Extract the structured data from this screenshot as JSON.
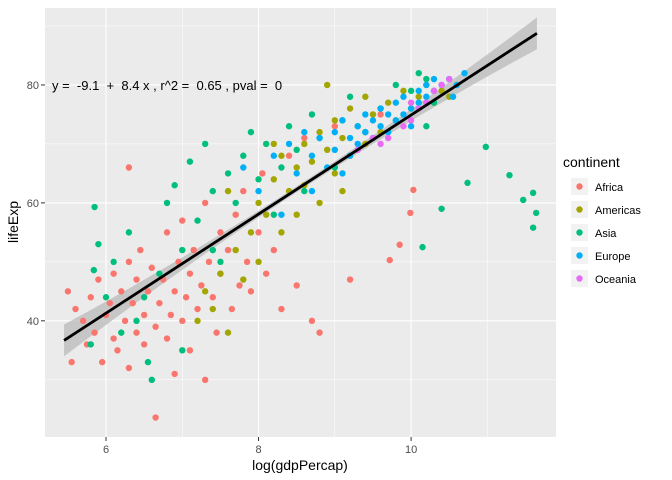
{
  "chart_data": {
    "type": "scatter",
    "xlabel": "log(gdpPercap)",
    "ylabel": "lifeExp",
    "xlim": [
      5.2,
      11.9
    ],
    "ylim": [
      20.3,
      93.05
    ],
    "x_ticks": [
      6,
      8,
      10
    ],
    "y_ticks": [
      40,
      60,
      80
    ],
    "grid": true,
    "annotation": "y =  -9.1  +  8.4 x , r^2 =  0.65 , pval =  0",
    "regression": {
      "intercept": -9.1,
      "slope": 8.4,
      "x_range": [
        5.45,
        11.65
      ],
      "color": "#000000",
      "band_color": "#bdbdbd"
    },
    "legend": {
      "title": "continent",
      "position": "right"
    },
    "series": [
      {
        "name": "Africa",
        "color": "#F8766D",
        "points": [
          [
            5.5,
            45
          ],
          [
            5.6,
            42
          ],
          [
            5.7,
            40
          ],
          [
            5.75,
            36
          ],
          [
            5.8,
            44
          ],
          [
            5.85,
            38
          ],
          [
            5.9,
            47
          ],
          [
            5.95,
            33
          ],
          [
            6.0,
            41
          ],
          [
            6.05,
            43
          ],
          [
            6.1,
            37
          ],
          [
            6.1,
            48
          ],
          [
            6.15,
            35
          ],
          [
            6.2,
            45
          ],
          [
            6.25,
            40
          ],
          [
            6.3,
            50
          ],
          [
            6.3,
            32
          ],
          [
            6.35,
            43
          ],
          [
            6.4,
            38
          ],
          [
            6.4,
            47
          ],
          [
            6.45,
            52
          ],
          [
            6.5,
            41
          ],
          [
            6.5,
            36
          ],
          [
            6.55,
            45
          ],
          [
            6.6,
            49
          ],
          [
            6.65,
            23.6
          ],
          [
            6.65,
            39
          ],
          [
            6.7,
            43
          ],
          [
            6.75,
            47
          ],
          [
            6.8,
            55
          ],
          [
            6.8,
            37
          ],
          [
            6.85,
            41
          ],
          [
            6.9,
            45
          ],
          [
            6.95,
            50
          ],
          [
            7.0,
            40
          ],
          [
            7.0,
            57
          ],
          [
            7.05,
            44
          ],
          [
            7.1,
            48
          ],
          [
            7.1,
            35
          ],
          [
            7.15,
            52
          ],
          [
            7.2,
            42
          ],
          [
            7.25,
            46
          ],
          [
            7.3,
            60
          ],
          [
            7.35,
            50
          ],
          [
            7.4,
            44
          ],
          [
            7.45,
            38
          ],
          [
            7.5,
            55
          ],
          [
            7.5,
            48
          ],
          [
            7.6,
            52
          ],
          [
            7.65,
            42
          ],
          [
            7.7,
            58
          ],
          [
            7.75,
            46
          ],
          [
            7.8,
            62
          ],
          [
            7.85,
            50
          ],
          [
            7.9,
            45
          ],
          [
            8.0,
            55
          ],
          [
            8.05,
            65
          ],
          [
            8.1,
            48
          ],
          [
            8.2,
            52
          ],
          [
            8.3,
            42
          ],
          [
            8.4,
            68
          ],
          [
            8.5,
            46
          ],
          [
            8.6,
            71
          ],
          [
            8.7,
            40
          ],
          [
            8.8,
            38
          ],
          [
            9.0,
            73
          ],
          [
            9.2,
            47
          ],
          [
            9.4,
            70
          ],
          [
            9.6,
            75
          ],
          [
            9.72,
            50.3
          ],
          [
            9.85,
            52.9
          ],
          [
            9.99,
            58.3
          ],
          [
            10.03,
            62.2
          ],
          [
            6.3,
            66
          ],
          [
            5.55,
            33
          ],
          [
            7.3,
            30
          ],
          [
            6.9,
            31
          ]
        ]
      },
      {
        "name": "Americas",
        "color": "#A3A500",
        "points": [
          [
            7.2,
            40
          ],
          [
            7.3,
            45
          ],
          [
            7.4,
            42
          ],
          [
            7.5,
            48
          ],
          [
            7.6,
            38
          ],
          [
            7.7,
            52
          ],
          [
            7.8,
            47
          ],
          [
            7.9,
            55
          ],
          [
            8.0,
            50
          ],
          [
            8.0,
            60
          ],
          [
            8.1,
            58
          ],
          [
            8.2,
            64
          ],
          [
            8.3,
            55
          ],
          [
            8.3,
            68
          ],
          [
            8.4,
            62
          ],
          [
            8.5,
            66
          ],
          [
            8.5,
            58
          ],
          [
            8.6,
            70
          ],
          [
            8.6,
            63
          ],
          [
            8.7,
            67
          ],
          [
            8.8,
            72
          ],
          [
            8.8,
            60
          ],
          [
            8.9,
            69
          ],
          [
            9.0,
            74
          ],
          [
            9.0,
            65
          ],
          [
            9.1,
            71
          ],
          [
            9.2,
            76
          ],
          [
            9.2,
            68
          ],
          [
            9.3,
            73
          ],
          [
            9.4,
            70
          ],
          [
            9.4,
            78
          ],
          [
            9.5,
            75
          ],
          [
            9.6,
            72
          ],
          [
            9.7,
            77
          ],
          [
            9.8,
            74
          ],
          [
            9.9,
            79
          ],
          [
            10.0,
            76
          ],
          [
            10.1,
            78
          ],
          [
            10.2,
            80
          ],
          [
            10.3,
            77
          ],
          [
            10.4,
            79
          ],
          [
            10.5,
            78
          ],
          [
            10.6,
            80
          ],
          [
            8.9,
            80
          ],
          [
            9.1,
            62
          ],
          [
            8.2,
            70
          ],
          [
            7.6,
            62
          ]
        ]
      },
      {
        "name": "Asia",
        "color": "#00BF7D",
        "points": [
          [
            5.8,
            36
          ],
          [
            5.84,
            48.6
          ],
          [
            5.85,
            59.3
          ],
          [
            5.9,
            53
          ],
          [
            6.0,
            44
          ],
          [
            6.2,
            38
          ],
          [
            6.3,
            55
          ],
          [
            6.4,
            40
          ],
          [
            6.5,
            44
          ],
          [
            6.6,
            30
          ],
          [
            6.7,
            48
          ],
          [
            6.8,
            60
          ],
          [
            6.9,
            63
          ],
          [
            7.0,
            52
          ],
          [
            7.1,
            67
          ],
          [
            7.2,
            57
          ],
          [
            7.3,
            70
          ],
          [
            7.4,
            62
          ],
          [
            7.5,
            50
          ],
          [
            7.6,
            65
          ],
          [
            7.7,
            60
          ],
          [
            7.8,
            68
          ],
          [
            7.9,
            72
          ],
          [
            8.0,
            64
          ],
          [
            8.1,
            70
          ],
          [
            8.2,
            58
          ],
          [
            8.3,
            66
          ],
          [
            8.4,
            73
          ],
          [
            8.5,
            69
          ],
          [
            8.6,
            62
          ],
          [
            8.7,
            75
          ],
          [
            8.8,
            71
          ],
          [
            9.0,
            66
          ],
          [
            9.1,
            74
          ],
          [
            9.2,
            78
          ],
          [
            9.4,
            72
          ],
          [
            9.6,
            76
          ],
          [
            9.8,
            80
          ],
          [
            10.0,
            79
          ],
          [
            10.1,
            82
          ],
          [
            10.2,
            81
          ],
          [
            10.3,
            77
          ],
          [
            10.4,
            59
          ],
          [
            10.15,
            52.5
          ],
          [
            10.74,
            63.4
          ],
          [
            10.98,
            69.5
          ],
          [
            11.29,
            64.7
          ],
          [
            11.47,
            60.5
          ],
          [
            11.6,
            61.7
          ],
          [
            11.64,
            58.3
          ],
          [
            11.6,
            55.8
          ],
          [
            10.2,
            73
          ],
          [
            6.1,
            50
          ],
          [
            7.0,
            35
          ],
          [
            6.55,
            33
          ],
          [
            7.4,
            52
          ]
        ]
      },
      {
        "name": "Europe",
        "color": "#00B0F6",
        "points": [
          [
            7.8,
            66
          ],
          [
            8.0,
            62
          ],
          [
            8.2,
            68
          ],
          [
            8.4,
            70
          ],
          [
            8.5,
            65
          ],
          [
            8.6,
            72
          ],
          [
            8.7,
            68
          ],
          [
            8.8,
            71
          ],
          [
            8.9,
            66
          ],
          [
            9.0,
            72
          ],
          [
            9.0,
            69
          ],
          [
            9.1,
            74
          ],
          [
            9.2,
            71
          ],
          [
            9.2,
            68
          ],
          [
            9.3,
            73
          ],
          [
            9.3,
            70
          ],
          [
            9.4,
            72
          ],
          [
            9.4,
            75
          ],
          [
            9.5,
            71
          ],
          [
            9.5,
            74
          ],
          [
            9.6,
            73
          ],
          [
            9.6,
            76
          ],
          [
            9.7,
            72
          ],
          [
            9.7,
            75
          ],
          [
            9.8,
            74
          ],
          [
            9.8,
            77
          ],
          [
            9.9,
            75
          ],
          [
            9.9,
            78
          ],
          [
            10.0,
            76
          ],
          [
            10.0,
            73
          ],
          [
            10.1,
            77
          ],
          [
            10.1,
            79
          ],
          [
            10.2,
            78
          ],
          [
            10.2,
            80
          ],
          [
            10.3,
            79
          ],
          [
            10.3,
            81
          ],
          [
            10.4,
            80
          ],
          [
            10.5,
            81
          ],
          [
            10.6,
            80
          ],
          [
            10.7,
            82
          ],
          [
            10.55,
            78
          ],
          [
            8.3,
            58
          ],
          [
            8.7,
            62
          ],
          [
            9.1,
            65
          ]
        ]
      },
      {
        "name": "Oceania",
        "color": "#E76BF3",
        "points": [
          [
            9.3,
            69
          ],
          [
            9.5,
            71
          ],
          [
            9.7,
            71
          ],
          [
            9.9,
            73
          ],
          [
            10.0,
            74
          ],
          [
            10.1,
            76
          ],
          [
            10.2,
            77
          ],
          [
            10.3,
            79
          ],
          [
            10.4,
            80
          ],
          [
            10.5,
            81
          ],
          [
            9.6,
            70
          ],
          [
            10.0,
            77
          ]
        ]
      }
    ]
  }
}
